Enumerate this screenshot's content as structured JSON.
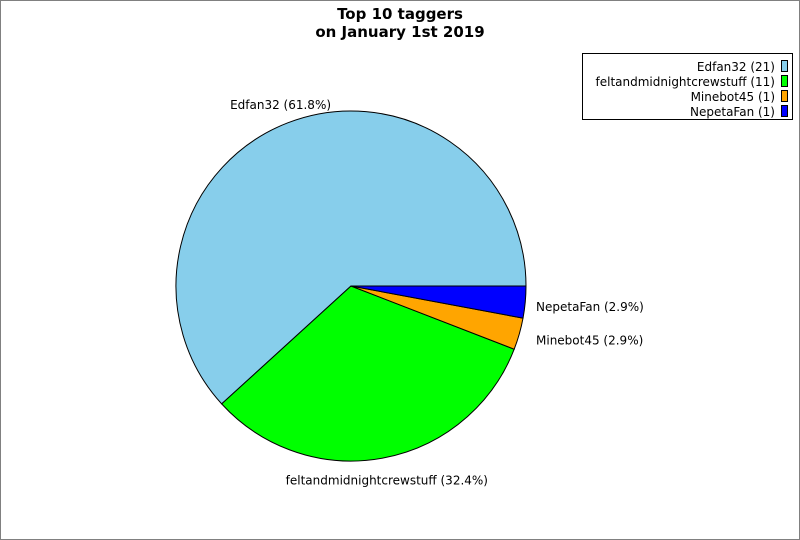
{
  "chart_data": {
    "type": "pie",
    "title_lines": [
      "Top 10 taggers",
      "on January 1st 2019"
    ],
    "start_angle_deg": 0,
    "direction": "counterclockwise",
    "legend_position": "top-right",
    "slices": [
      {
        "name": "Edfan32",
        "value": 21,
        "percent": "61.8%",
        "color": "#87ceeb",
        "legend": "Edfan32 (21)",
        "label": "Edfan32 (61.8%)"
      },
      {
        "name": "feltandmidnightcrewstuff",
        "value": 11,
        "percent": "32.4%",
        "color": "#00ff00",
        "legend": "feltandmidnightcrewstuff (11)",
        "label": "feltandmidnightcrewstuff (32.4%)"
      },
      {
        "name": "Minebot45",
        "value": 1,
        "percent": "2.9%",
        "color": "#ffa500",
        "legend": "Minebot45 (1)",
        "label": "Minebot45 (2.9%)"
      },
      {
        "name": "NepetaFan",
        "value": 1,
        "percent": "2.9%",
        "color": "#0000ff",
        "legend": "NepetaFan (1)",
        "label": "NepetaFan (2.9%)"
      }
    ]
  }
}
